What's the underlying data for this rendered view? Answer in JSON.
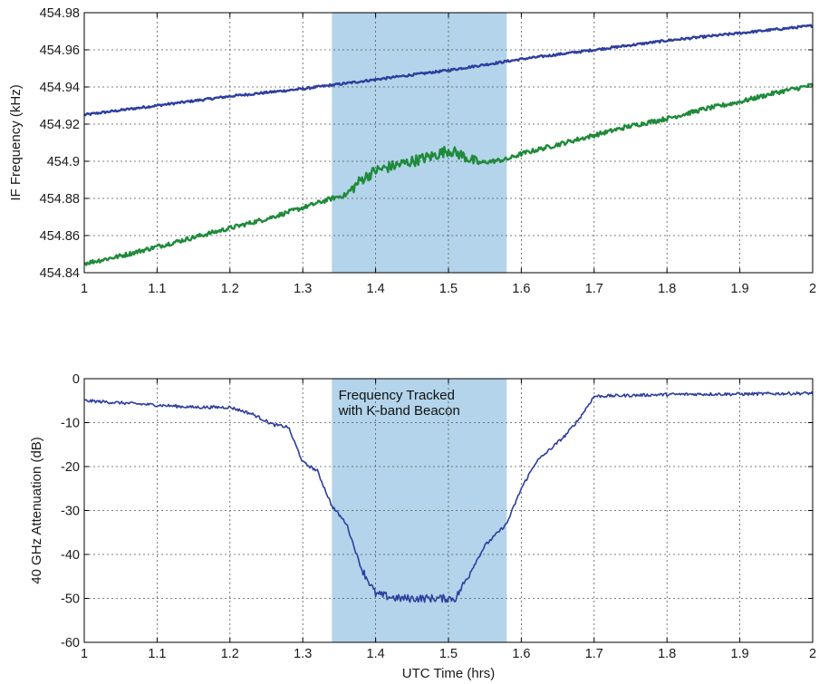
{
  "chart_data": [
    {
      "type": "line",
      "title": "",
      "xlabel": "",
      "ylabel": "IF Frequency (kHz)",
      "xlim": [
        1,
        2
      ],
      "ylim": [
        454.84,
        454.98
      ],
      "x_ticks": [
        "1",
        "1.1",
        "1.2",
        "1.3",
        "1.4",
        "1.5",
        "1.6",
        "1.7",
        "1.8",
        "1.9",
        "2"
      ],
      "y_ticks": [
        "454.84",
        "454.86",
        "454.88",
        "454.9",
        "454.92",
        "454.94",
        "454.96",
        "454.98"
      ],
      "grid": true,
      "shaded_region": {
        "x": [
          1.34,
          1.58
        ],
        "color": "#b3d4ea"
      },
      "series": [
        {
          "color": "#2e3e9e",
          "x": [
            1.0,
            1.1,
            1.2,
            1.3,
            1.4,
            1.5,
            1.6,
            1.7,
            1.8,
            1.9,
            2.0
          ],
          "values": [
            454.925,
            454.93,
            454.935,
            454.939,
            454.944,
            454.949,
            454.955,
            454.96,
            454.965,
            454.969,
            454.973
          ]
        },
        {
          "color": "#1f8a3a",
          "x": [
            1.0,
            1.05,
            1.1,
            1.15,
            1.2,
            1.25,
            1.3,
            1.34,
            1.36,
            1.38,
            1.4,
            1.42,
            1.45,
            1.48,
            1.5,
            1.52,
            1.54,
            1.56,
            1.58,
            1.6,
            1.65,
            1.7,
            1.75,
            1.8,
            1.85,
            1.9,
            1.95,
            2.0
          ],
          "values": [
            454.845,
            454.849,
            454.854,
            454.859,
            454.864,
            454.869,
            454.875,
            454.88,
            454.882,
            454.89,
            454.895,
            454.897,
            454.9,
            454.903,
            454.906,
            454.903,
            454.899,
            454.9,
            454.901,
            454.904,
            454.909,
            454.914,
            454.919,
            454.923,
            454.928,
            454.932,
            454.937,
            454.941
          ]
        }
      ]
    },
    {
      "type": "line",
      "title": "",
      "xlabel": "UTC Time (hrs)",
      "ylabel": "40 GHz Attenuation (dB)",
      "xlim": [
        1,
        2
      ],
      "ylim": [
        -60,
        0
      ],
      "x_ticks": [
        "1",
        "1.1",
        "1.2",
        "1.3",
        "1.4",
        "1.5",
        "1.6",
        "1.7",
        "1.8",
        "1.9",
        "2"
      ],
      "y_ticks": [
        "0",
        "-10",
        "-20",
        "-30",
        "-40",
        "-50",
        "-60"
      ],
      "grid": true,
      "shaded_region": {
        "x": [
          1.34,
          1.58
        ],
        "color": "#b3d4ea"
      },
      "annotation": [
        "Frequency Tracked",
        "with K-band Beacon"
      ],
      "series": [
        {
          "color": "#2e3e9e",
          "x": [
            1.0,
            1.05,
            1.1,
            1.15,
            1.2,
            1.23,
            1.26,
            1.28,
            1.3,
            1.32,
            1.34,
            1.36,
            1.38,
            1.4,
            1.43,
            1.46,
            1.49,
            1.51,
            1.53,
            1.55,
            1.58,
            1.6,
            1.62,
            1.64,
            1.66,
            1.68,
            1.7,
            1.75,
            1.8,
            1.85,
            1.9,
            1.95,
            2.0
          ],
          "values": [
            -5,
            -5.5,
            -6,
            -6.5,
            -6.5,
            -8,
            -10.5,
            -11,
            -19,
            -21,
            -29,
            -33,
            -43,
            -49,
            -50,
            -50,
            -50,
            -50,
            -44,
            -38,
            -33,
            -25,
            -19,
            -16,
            -13,
            -9,
            -4,
            -3.8,
            -3.6,
            -3.5,
            -3.5,
            -3.4,
            -3.3
          ]
        }
      ]
    }
  ]
}
